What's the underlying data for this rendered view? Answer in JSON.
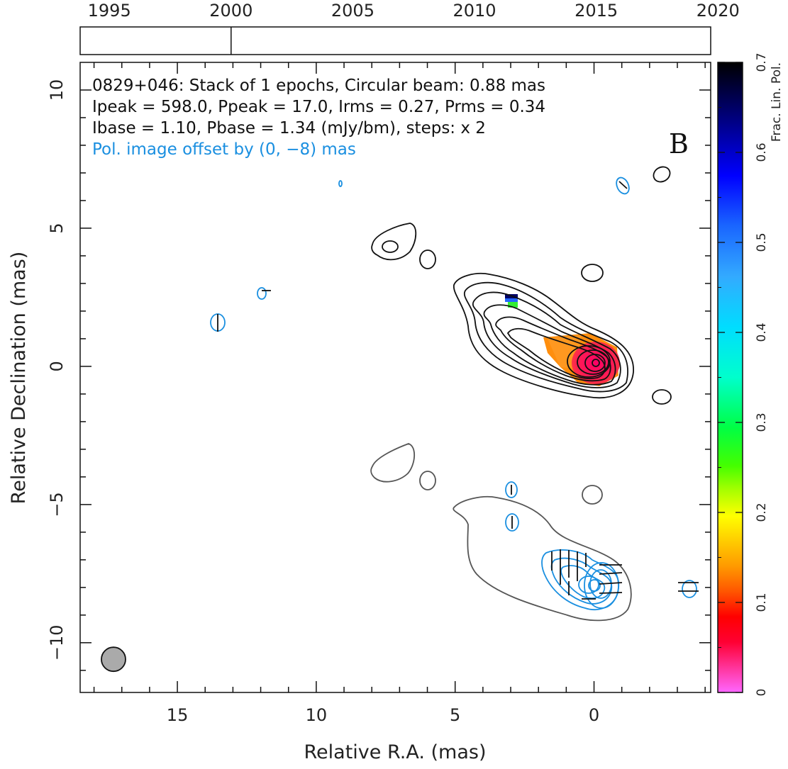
{
  "chart_data": {
    "type": "contour",
    "xlabel": "Relative R.A. (mas)",
    "ylabel": "Relative Declination (mas)",
    "xlim": [
      18.5,
      -4.2
    ],
    "ylim": [
      -11.8,
      11.0
    ],
    "xticks": [
      15,
      10,
      5,
      0
    ],
    "yticks": [
      10,
      5,
      0,
      -5,
      -10
    ],
    "annotations": [
      "0829+046: Stack of 1 epochs, Circular beam: 0.88 mas",
      "Ipeak = 598.0, Ppeak = 17.0, Irms = 0.27, Prms = 0.34",
      "Ibase = 1.10, Pbase = 1.34 (mJy/bm), steps: x 2"
    ],
    "offset_note": "Pol. image offset by (0, −8) mas",
    "panel_letter": "B",
    "beam": {
      "x": 17.3,
      "y": -10.6,
      "diameter_mas": 0.88
    },
    "timeline": {
      "years": [
        "1995",
        "2000",
        "2005",
        "2010",
        "2015",
        "2020"
      ],
      "range": [
        1993.8,
        2019.7
      ],
      "epochs": [
        2000.0
      ]
    },
    "colorbar": {
      "label": "Frac. Lin. Pol.",
      "range": [
        0,
        0.7
      ],
      "ticks": [
        "0",
        "0.1",
        "0.2",
        "0.3",
        "0.4",
        "0.5",
        "0.6",
        "0.7"
      ]
    },
    "total_intensity_contours": {
      "color": "#111111",
      "center": [
        0,
        0
      ],
      "levels_mas": [
        {
          "dx": 0.7,
          "dy": 0.6,
          "count": 9
        }
      ]
    },
    "polarized_contours": {
      "color": "#1a8fe0",
      "offset_dec": -8
    },
    "colors": {
      "stokes_i": "#111111",
      "stokes_i_offset": "#555555",
      "pol": "#1a8fe0",
      "beam_fill": "#aaaaaa"
    }
  }
}
